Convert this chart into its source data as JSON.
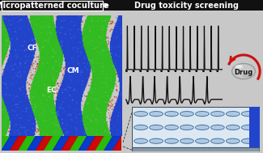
{
  "title_left": "Micropatterned coculture",
  "title_right": "Drug toxicity screening",
  "header_bg": "#111111",
  "header_text_color": "#ffffff",
  "header_fontsize": 7.0,
  "fig_bg": "#c8c8c8",
  "drug_label": "Drug",
  "ecg_color": "#111111",
  "label_cf": "CF",
  "label_cm": "CM",
  "label_ec": "EC",
  "micro_bg": "#220000",
  "green_stripe": "#33cc22",
  "blue_stripe": "#2244cc",
  "red_bg": "#993300",
  "well_plate_bg": "#dde8f0",
  "well_color": "#b0c8e0",
  "well_ring": "#4477aa",
  "arrow_red": "#cc1111"
}
